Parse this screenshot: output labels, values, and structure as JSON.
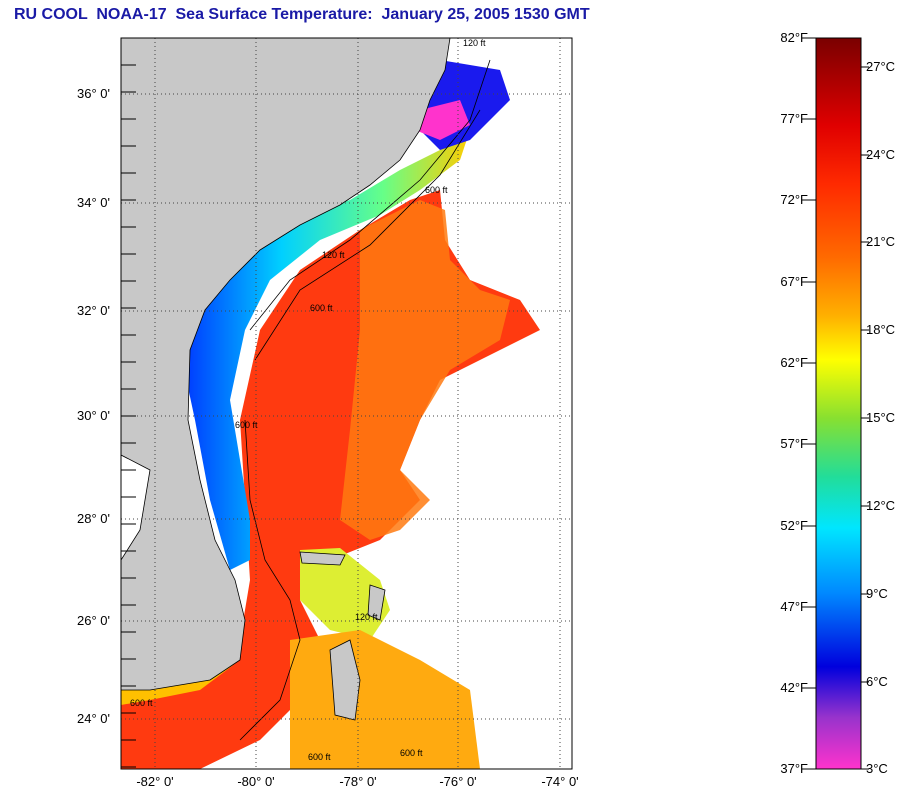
{
  "title": "RU COOL  NOAA-17  Sea Surface Temperature:  January 25, 2005 1530 GMT",
  "map": {
    "lat_labels": [
      "36° 0'",
      "34° 0'",
      "32° 0'",
      "30° 0'",
      "28° 0'",
      "26° 0'",
      "24° 0'"
    ],
    "lon_labels": [
      "-82° 0'",
      "-80° 0'",
      "-78° 0'",
      "-76° 0'",
      "-74° 0'"
    ],
    "contour_labels": [
      "120 ft",
      "600 ft",
      "120 ft",
      "600 ft",
      "600 ft",
      "120 ft",
      "600 ft",
      "600 ft",
      "600 ft"
    ],
    "colors": {
      "land": "#c8c8c8",
      "no_data": "#ffffff",
      "grid": "#555555"
    }
  },
  "colorbar": {
    "fahrenheit": [
      "82°F",
      "77°F",
      "72°F",
      "67°F",
      "62°F",
      "57°F",
      "52°F",
      "47°F",
      "42°F",
      "37°F"
    ],
    "celsius": [
      "27°C",
      "24°C",
      "21°C",
      "18°C",
      "15°C",
      "12°C",
      "9°C",
      "6°C",
      "3°C"
    ],
    "colors": [
      "#8b0000",
      "#e60000",
      "#ff3300",
      "#ff6600",
      "#ffb000",
      "#ffff00",
      "#77dd22",
      "#00ccaa",
      "#00ccee",
      "#0066ff",
      "#0000cc",
      "#9933cc",
      "#ff33cc"
    ]
  }
}
